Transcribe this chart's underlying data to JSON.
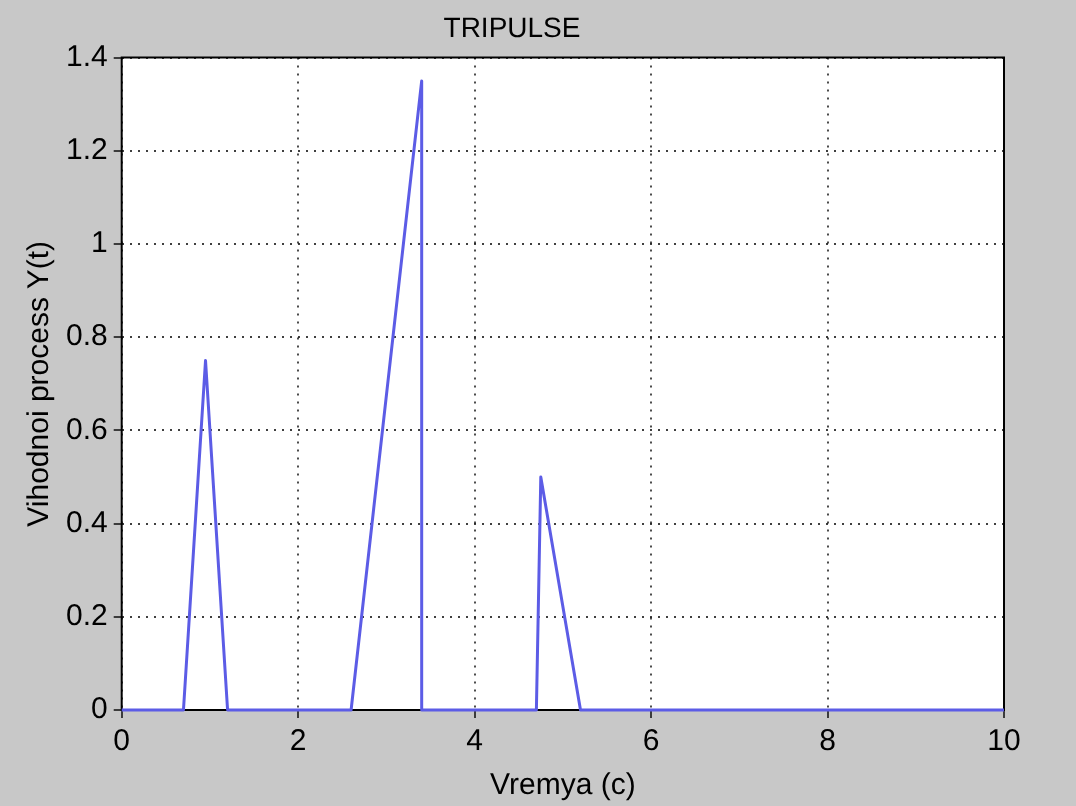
{
  "chart_data": {
    "type": "line",
    "title": "TRIPULSE",
    "xlabel": "Vremya (c)",
    "ylabel": "Vihodnoi process Y(t)",
    "x": [
      0,
      0.7,
      0.95,
      1.2,
      2.6,
      3.4,
      3.4,
      4.7,
      4.75,
      5.2,
      10
    ],
    "series": [
      {
        "color": "#5c5ce6",
        "values": [
          0,
          0,
          0.75,
          0,
          0,
          1.35,
          0,
          0,
          0.5,
          0,
          0
        ]
      }
    ],
    "xlim": [
      0,
      10
    ],
    "xticks": [
      0,
      2,
      4,
      6,
      8,
      10
    ],
    "ylim": [
      0,
      1.4
    ],
    "yticks": [
      0,
      0.2,
      0.4,
      0.6,
      0.8,
      1,
      1.2,
      1.4
    ],
    "grid": true,
    "legend": false,
    "marker": "none",
    "line_style": "solid"
  }
}
